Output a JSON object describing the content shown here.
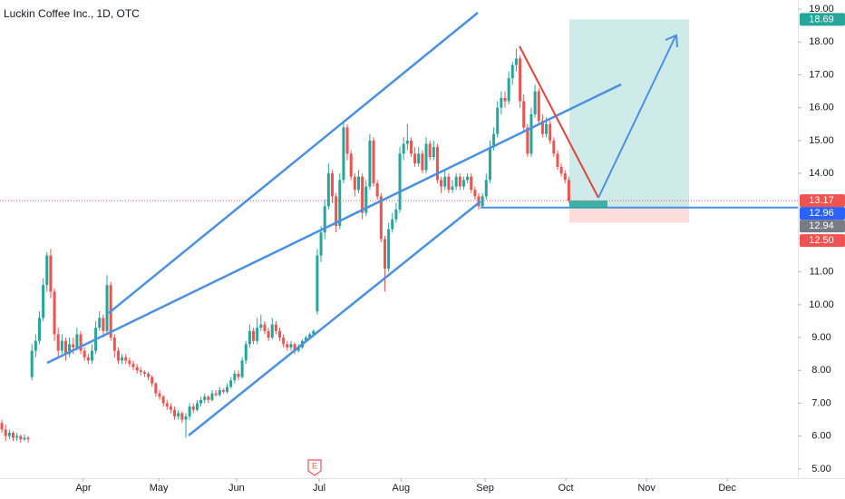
{
  "chart_data": {
    "type": "candlestick",
    "title": "Luckin Coffee Inc., 1D, OTC",
    "up_color": "#26a69a",
    "down_color": "#ef5350",
    "xlim": [
      -0.5,
      212
    ],
    "xticks": [
      {
        "value": 21.7,
        "label": "Apr"
      },
      {
        "value": 41.8,
        "label": "May"
      },
      {
        "value": 62.5,
        "label": "Jun"
      },
      {
        "value": 84.5,
        "label": "Jul"
      },
      {
        "value": 106.3,
        "label": "Aug"
      },
      {
        "value": 128.7,
        "label": "Sep"
      },
      {
        "value": 150.2,
        "label": "Oct"
      },
      {
        "value": 171.7,
        "label": "Nov"
      },
      {
        "value": 193.2,
        "label": "Dec"
      }
    ],
    "ylim": [
      4.72,
      19.28
    ],
    "yticks": [
      {
        "value": 19,
        "label": "19.00"
      },
      {
        "value": 18,
        "label": "18.00"
      },
      {
        "value": 17,
        "label": "17.00"
      },
      {
        "value": 16,
        "label": "16.00"
      },
      {
        "value": 15,
        "label": "15.00"
      },
      {
        "value": 14,
        "label": "14.00"
      },
      {
        "value": 11,
        "label": "11.00"
      },
      {
        "value": 10,
        "label": "10.00"
      },
      {
        "value": 9,
        "label": "9.00"
      },
      {
        "value": 8,
        "label": "8.00"
      },
      {
        "value": 7,
        "label": "7.00"
      },
      {
        "value": 6,
        "label": "6.00"
      },
      {
        "value": 5,
        "label": "5.00"
      }
    ],
    "price_labels": [
      {
        "value": 18.69,
        "color": "#26a69a"
      },
      {
        "value": 13.17,
        "color": "#ef5350"
      },
      {
        "value": 12.96,
        "color": "#2962ff"
      },
      {
        "value": 12.94,
        "color": "#787b86"
      },
      {
        "value": {
          "value": 12.5,
          "label": "12.50"
        },
        "color": "#ef5350"
      }
    ],
    "earnings_marker": "E",
    "ohlc": [
      [
        6.4,
        6.5,
        6.1,
        6.2
      ],
      [
        6.2,
        6.35,
        5.85,
        6.0
      ],
      [
        6.0,
        6.2,
        5.9,
        6.1
      ],
      [
        6.1,
        6.15,
        5.85,
        5.95
      ],
      [
        5.95,
        6.1,
        5.85,
        6.0
      ],
      [
        6.0,
        6.05,
        5.8,
        5.9
      ],
      [
        5.9,
        6.05,
        5.85,
        5.95
      ],
      [
        5.95,
        6.0,
        5.8,
        5.9
      ],
      [
        7.8,
        8.8,
        7.7,
        8.6
      ],
      [
        8.6,
        9.1,
        8.4,
        8.9
      ],
      [
        8.9,
        9.8,
        8.8,
        9.6
      ],
      [
        9.6,
        10.8,
        9.5,
        10.6
      ],
      [
        10.6,
        11.6,
        10.4,
        11.5
      ],
      [
        11.5,
        11.7,
        10.2,
        10.4
      ],
      [
        10.4,
        10.5,
        8.9,
        9.1
      ],
      [
        9.1,
        9.3,
        8.4,
        8.6
      ],
      [
        8.6,
        9.1,
        8.5,
        8.9
      ],
      [
        8.9,
        9.0,
        8.3,
        8.5
      ],
      [
        8.5,
        9.0,
        8.4,
        8.8
      ],
      [
        8.8,
        9.0,
        8.5,
        8.7
      ],
      [
        8.7,
        9.3,
        8.6,
        9.1
      ],
      [
        9.1,
        9.2,
        8.5,
        8.6
      ],
      [
        8.6,
        8.7,
        8.3,
        8.4
      ],
      [
        8.4,
        8.5,
        8.2,
        8.3
      ],
      [
        8.3,
        8.8,
        8.2,
        8.6
      ],
      [
        8.6,
        9.5,
        8.5,
        9.3
      ],
      [
        9.3,
        9.8,
        9.2,
        9.6
      ],
      [
        9.6,
        9.7,
        9.0,
        9.2
      ],
      [
        9.2,
        10.9,
        9.1,
        10.6
      ],
      [
        10.6,
        10.7,
        8.9,
        9.0
      ],
      [
        9.0,
        9.1,
        8.4,
        8.6
      ],
      [
        8.6,
        8.7,
        8.2,
        8.3
      ],
      [
        8.3,
        8.5,
        8.2,
        8.4
      ],
      [
        8.4,
        8.5,
        8.2,
        8.3
      ],
      [
        8.3,
        8.4,
        8.1,
        8.2
      ],
      [
        8.2,
        8.3,
        8.0,
        8.1
      ],
      [
        8.1,
        8.2,
        7.9,
        8.0
      ],
      [
        8.0,
        8.1,
        7.85,
        7.95
      ],
      [
        7.95,
        8.0,
        7.8,
        7.9
      ],
      [
        7.9,
        7.95,
        7.7,
        7.8
      ],
      [
        7.8,
        7.85,
        7.5,
        7.6
      ],
      [
        7.6,
        7.65,
        7.2,
        7.3
      ],
      [
        7.3,
        7.4,
        7.1,
        7.2
      ],
      [
        7.2,
        7.25,
        6.9,
        7.0
      ],
      [
        7.0,
        7.1,
        6.8,
        6.9
      ],
      [
        6.9,
        7.0,
        6.7,
        6.8
      ],
      [
        6.8,
        6.9,
        6.5,
        6.6
      ],
      [
        6.6,
        6.8,
        6.5,
        6.7
      ],
      [
        6.7,
        6.75,
        6.4,
        6.5
      ],
      [
        6.5,
        6.7,
        5.95,
        6.6
      ],
      [
        6.6,
        7.0,
        6.5,
        6.9
      ],
      [
        6.9,
        7.0,
        6.7,
        6.8
      ],
      [
        6.8,
        7.1,
        6.75,
        7.0
      ],
      [
        7.0,
        7.2,
        6.9,
        7.1
      ],
      [
        7.1,
        7.3,
        7.0,
        7.2
      ],
      [
        7.2,
        7.25,
        7.0,
        7.1
      ],
      [
        7.1,
        7.4,
        7.05,
        7.3
      ],
      [
        7.3,
        7.4,
        7.2,
        7.25
      ],
      [
        7.25,
        7.5,
        7.2,
        7.4
      ],
      [
        7.4,
        7.45,
        7.3,
        7.35
      ],
      [
        7.35,
        7.6,
        7.3,
        7.5
      ],
      [
        7.5,
        7.8,
        7.45,
        7.7
      ],
      [
        7.7,
        8.0,
        7.6,
        7.9
      ],
      [
        7.9,
        8.0,
        7.7,
        7.8
      ],
      [
        7.8,
        8.4,
        7.75,
        8.3
      ],
      [
        8.3,
        8.9,
        8.2,
        8.8
      ],
      [
        8.8,
        9.4,
        8.7,
        9.2
      ],
      [
        9.2,
        9.3,
        8.8,
        8.9
      ],
      [
        8.9,
        9.6,
        8.8,
        9.3
      ],
      [
        9.3,
        9.7,
        9.2,
        9.4
      ],
      [
        9.4,
        9.5,
        9.1,
        9.2
      ],
      [
        9.2,
        9.3,
        8.9,
        9.0
      ],
      [
        9.0,
        9.6,
        8.95,
        9.4
      ],
      [
        9.4,
        9.5,
        9.1,
        9.2
      ],
      [
        9.2,
        9.3,
        8.9,
        9.0
      ],
      [
        9.0,
        9.1,
        8.7,
        8.8
      ],
      [
        8.8,
        8.9,
        8.6,
        8.7
      ],
      [
        8.7,
        8.9,
        8.6,
        8.8
      ],
      [
        8.8,
        8.85,
        8.5,
        8.6
      ],
      [
        8.6,
        8.8,
        8.55,
        8.7
      ],
      [
        8.7,
        8.95,
        8.65,
        8.9
      ],
      [
        8.9,
        9.05,
        8.85,
        9.0
      ],
      [
        9.0,
        9.15,
        8.95,
        9.1
      ],
      [
        9.1,
        9.25,
        9.05,
        9.2
      ],
      [
        9.8,
        11.7,
        9.7,
        11.5
      ],
      [
        11.5,
        12.4,
        11.3,
        12.2
      ],
      [
        12.2,
        13.2,
        12.0,
        13.0
      ],
      [
        13.0,
        14.3,
        12.9,
        14.0
      ],
      [
        14.0,
        14.1,
        13.1,
        13.3
      ],
      [
        13.3,
        13.4,
        12.2,
        12.4
      ],
      [
        12.4,
        14.0,
        12.3,
        13.8
      ],
      [
        13.8,
        15.6,
        13.7,
        15.4
      ],
      [
        15.4,
        15.5,
        14.4,
        14.6
      ],
      [
        14.6,
        14.7,
        13.8,
        13.9
      ],
      [
        13.9,
        14.0,
        13.3,
        13.5
      ],
      [
        13.5,
        14.1,
        13.4,
        13.9
      ],
      [
        13.9,
        14.0,
        12.6,
        12.8
      ],
      [
        12.8,
        13.8,
        12.7,
        13.6
      ],
      [
        13.6,
        15.2,
        13.5,
        15.0
      ],
      [
        15.0,
        15.1,
        13.6,
        13.7
      ],
      [
        13.7,
        13.8,
        13.2,
        13.3
      ],
      [
        13.3,
        13.4,
        11.9,
        12.0
      ],
      [
        12.0,
        12.1,
        10.4,
        11.1
      ],
      [
        11.1,
        12.5,
        11.0,
        12.3
      ],
      [
        12.3,
        12.8,
        12.2,
        12.6
      ],
      [
        12.6,
        13.1,
        12.5,
        12.9
      ],
      [
        12.9,
        14.8,
        12.8,
        14.6
      ],
      [
        14.6,
        15.1,
        14.4,
        14.9
      ],
      [
        14.9,
        15.5,
        14.7,
        15.0
      ],
      [
        15.0,
        15.1,
        14.5,
        14.6
      ],
      [
        14.6,
        14.8,
        14.2,
        14.3
      ],
      [
        14.3,
        14.8,
        14.2,
        14.6
      ],
      [
        14.6,
        14.7,
        14.0,
        14.1
      ],
      [
        14.1,
        15.1,
        14.0,
        14.9
      ],
      [
        14.9,
        15.0,
        14.4,
        14.5
      ],
      [
        14.5,
        15.0,
        14.4,
        14.8
      ],
      [
        14.8,
        14.9,
        13.7,
        13.8
      ],
      [
        13.8,
        13.9,
        13.4,
        13.6
      ],
      [
        13.6,
        14.1,
        13.5,
        13.9
      ],
      [
        13.9,
        14.0,
        13.4,
        13.5
      ],
      [
        13.5,
        13.8,
        13.4,
        13.6
      ],
      [
        13.6,
        14.0,
        13.5,
        13.9
      ],
      [
        13.9,
        14.0,
        13.5,
        13.6
      ],
      [
        13.6,
        13.9,
        13.5,
        13.8
      ],
      [
        13.8,
        14.0,
        13.7,
        13.9
      ],
      [
        13.9,
        14.0,
        13.4,
        13.5
      ],
      [
        13.5,
        13.6,
        13.2,
        13.3
      ],
      [
        13.3,
        13.4,
        12.9,
        13.0
      ],
      [
        13.0,
        13.4,
        12.95,
        13.3
      ],
      [
        13.3,
        14.0,
        13.2,
        13.8
      ],
      [
        13.8,
        15.0,
        13.7,
        14.8
      ],
      [
        14.8,
        15.4,
        14.7,
        15.2
      ],
      [
        15.2,
        16.2,
        15.1,
        16.0
      ],
      [
        16.0,
        16.5,
        15.8,
        16.3
      ],
      [
        16.3,
        16.5,
        16.0,
        16.2
      ],
      [
        16.2,
        17.1,
        16.1,
        16.9
      ],
      [
        16.9,
        17.4,
        16.7,
        17.3
      ],
      [
        17.3,
        17.8,
        17.1,
        17.5
      ],
      [
        17.5,
        17.6,
        16.0,
        16.2
      ],
      [
        16.2,
        16.4,
        15.3,
        15.4
      ],
      [
        15.4,
        15.5,
        14.5,
        14.6
      ],
      [
        14.6,
        16.0,
        14.5,
        15.8
      ],
      [
        15.8,
        16.7,
        15.7,
        16.5
      ],
      [
        16.5,
        16.6,
        15.5,
        15.6
      ],
      [
        15.6,
        15.8,
        15.1,
        15.2
      ],
      [
        15.2,
        15.7,
        15.1,
        15.5
      ],
      [
        15.5,
        15.6,
        14.9,
        15.0
      ],
      [
        15.0,
        15.1,
        14.5,
        14.6
      ],
      [
        14.6,
        14.7,
        14.1,
        14.2
      ],
      [
        14.2,
        14.3,
        13.9,
        14.0
      ],
      [
        14.0,
        14.1,
        13.7,
        13.8
      ],
      [
        13.8,
        13.9,
        13.1,
        13.17
      ]
    ]
  }
}
